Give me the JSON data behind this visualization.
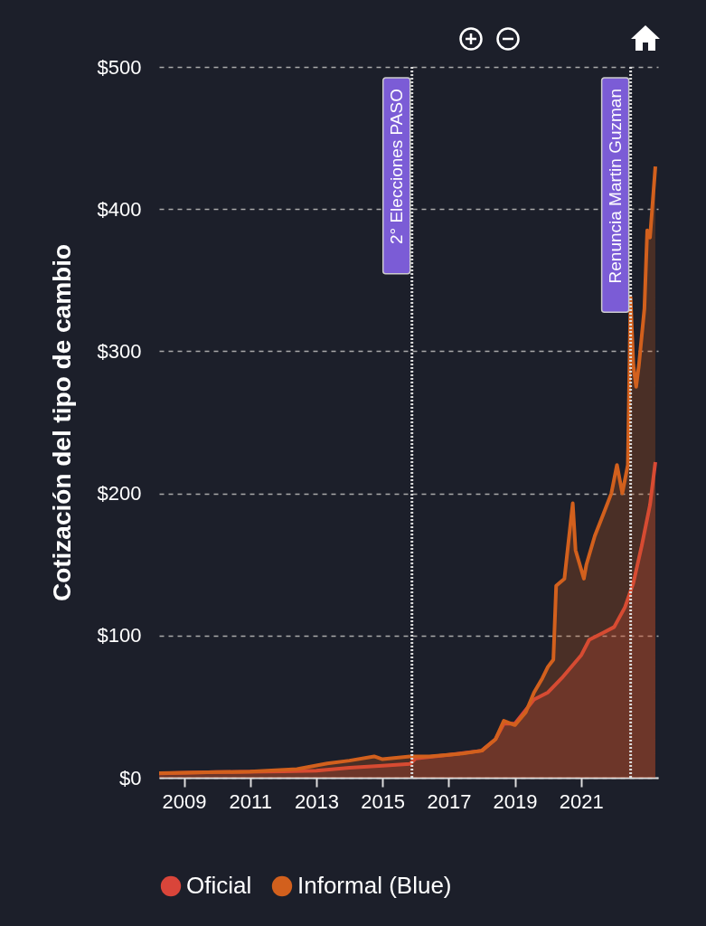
{
  "chart_data": {
    "type": "area",
    "ylabel": "Cotización del tipo de cambio",
    "xlim": [
      "2008-04",
      "2023-05"
    ],
    "xticks": [
      "2009",
      "2011",
      "2013",
      "2015",
      "2017",
      "2019",
      "2021"
    ],
    "ylim": [
      0,
      500
    ],
    "yticks": [
      {
        "value": 0,
        "label": "$0"
      },
      {
        "value": 100,
        "label": "$100"
      },
      {
        "value": 200,
        "label": "$200"
      },
      {
        "value": 300,
        "label": "$300"
      },
      {
        "value": 400,
        "label": "$400"
      },
      {
        "value": 500,
        "label": "$500"
      }
    ],
    "grid": "y",
    "legend": "bottom",
    "series": [
      {
        "name": "Oficial",
        "color": "#d9453a",
        "x": [
          "2008-04",
          "2010-01",
          "2012-01",
          "2013-01",
          "2014-01",
          "2015-01",
          "2015-11",
          "2016-01",
          "2017-01",
          "2018-01",
          "2018-06",
          "2018-09",
          "2019-01",
          "2019-08",
          "2020-01",
          "2020-06",
          "2021-01",
          "2021-04",
          "2021-09",
          "2022-01",
          "2022-05",
          "2022-08",
          "2022-11",
          "2023-02",
          "2023-04"
        ],
        "values": [
          3.1,
          3.9,
          4.4,
          5,
          7,
          8.5,
          9.7,
          13.5,
          16,
          19,
          27,
          38,
          38,
          55,
          60,
          70,
          86,
          97,
          102,
          106,
          120,
          137,
          163,
          192,
          222
        ]
      },
      {
        "name": "Informal (Blue)",
        "color": "#d2601d",
        "x": [
          "2008-04",
          "2011-01",
          "2012-06",
          "2013-05",
          "2014-01",
          "2014-10",
          "2015-01",
          "2015-11",
          "2016-06",
          "2017-06",
          "2018-01",
          "2018-06",
          "2018-09",
          "2019-01",
          "2019-05",
          "2019-08",
          "2019-11",
          "2020-01",
          "2020-03",
          "2020-04",
          "2020-07",
          "2020-10",
          "2020-11",
          "2021-02",
          "2021-03",
          "2021-06",
          "2021-09",
          "2021-12",
          "2022-02",
          "2022-04",
          "2022-06",
          "2022-07",
          "2022-08",
          "2022-09",
          "2022-10",
          "2022-12",
          "2023-01",
          "2023-02",
          "2023-04"
        ],
        "values": [
          3.2,
          4.3,
          6,
          10,
          12,
          15,
          13,
          15,
          15,
          17,
          19,
          27,
          40,
          37,
          46,
          60,
          70,
          78,
          83,
          135,
          140,
          193,
          160,
          140,
          150,
          170,
          185,
          200,
          220,
          200,
          220,
          338,
          290,
          275,
          290,
          330,
          385,
          380,
          430
        ]
      }
    ],
    "ref_lines": [
      {
        "axis": "x",
        "value": "2015-11-22",
        "label": "2° Elecciones PASO",
        "color": "#dddddd"
      },
      {
        "axis": "x",
        "value": "2022-07-02",
        "label": "Renuncia Martin Guzman",
        "color": "#dddddd"
      }
    ]
  }
}
